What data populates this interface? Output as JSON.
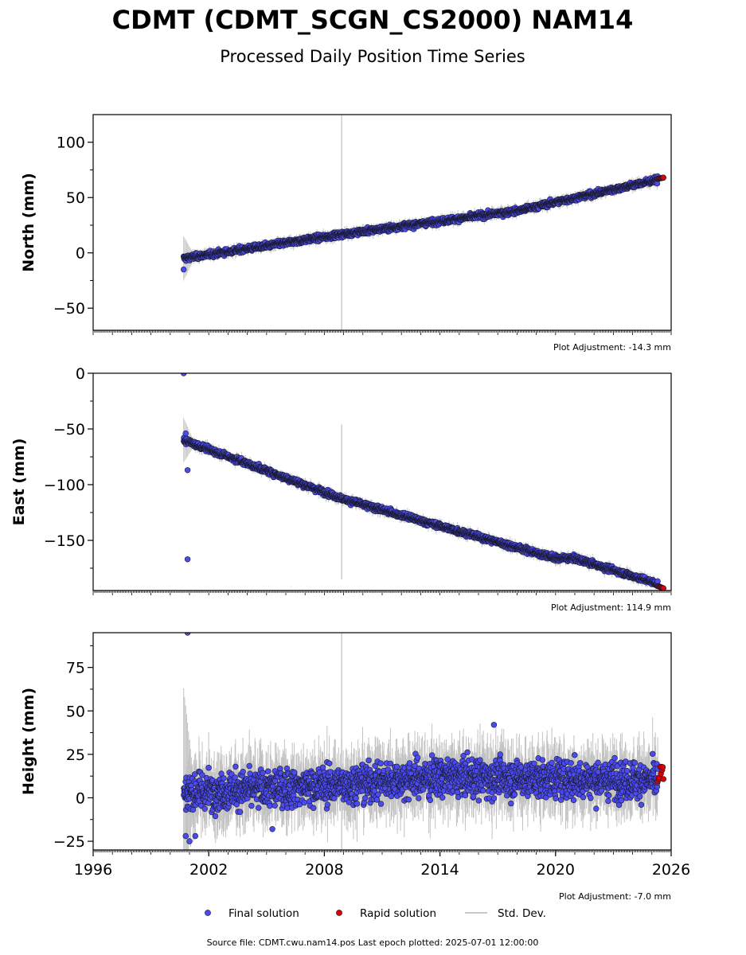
{
  "header": {
    "title": "CDMT (CDMT_SCGN_CS2000) NAM14",
    "subtitle": "Processed Daily Position Time Series"
  },
  "footer": {
    "source": "Source file: CDMT.cwu.nam14.pos  Last epoch plotted: 2025-07-01 12:00:00"
  },
  "legend": {
    "final": "Final solution",
    "rapid": "Rapid solution",
    "std": "Std. Dev."
  },
  "colors": {
    "final": "#4b4bef",
    "rapid": "#e00000",
    "std": "#c8c8c8",
    "edge": "#1a1a2e"
  },
  "chart_data": [
    {
      "type": "scatter",
      "ylabel": "North (mm)",
      "adjustment": "Plot Adjustment: -14.3 mm",
      "xlim": [
        1996,
        2026
      ],
      "ylim": [
        -70,
        125
      ],
      "yticks": [
        -50,
        0,
        50,
        100
      ],
      "yticks_labels": [
        "−50",
        "0",
        "50",
        "100"
      ],
      "trend": {
        "x": [
          2000.7,
          2009,
          2018,
          2025.5
        ],
        "y": [
          -5,
          17,
          38,
          67
        ]
      },
      "noise": 1.8,
      "outliers": [
        [
          2000.7,
          -15
        ]
      ],
      "rapid": {
        "x0": 2025.3,
        "x1": 2025.6,
        "y0": 67,
        "y1": 68
      },
      "spike": {
        "x": 2008.9,
        "y0": -70,
        "y1": 125
      }
    },
    {
      "type": "scatter",
      "ylabel": "East (mm)",
      "adjustment": "Plot Adjustment: 114.9 mm",
      "xlim": [
        1996,
        2026
      ],
      "ylim": [
        -195,
        0
      ],
      "yticks": [
        -150,
        -100,
        -50,
        0
      ],
      "yticks_labels": [
        "−150",
        "−100",
        "−50",
        "0"
      ],
      "trend": {
        "x": [
          2000.7,
          2009,
          2020,
          2021,
          2025.5
        ],
        "y": [
          -60,
          -113,
          -166,
          -166,
          -190
        ]
      },
      "noise": 1.8,
      "outliers": [
        [
          2000.7,
          0
        ],
        [
          2000.8,
          -54
        ],
        [
          2000.9,
          -87
        ],
        [
          2000.9,
          -167
        ]
      ],
      "rapid": {
        "x0": 2025.3,
        "x1": 2025.6,
        "y0": -191,
        "y1": -193
      },
      "spike": {
        "x": 2008.9,
        "y0": -185,
        "y1": -46
      }
    },
    {
      "type": "scatter",
      "ylabel": "Height (mm)",
      "adjustment": "Plot Adjustment: -7.0 mm",
      "xlim": [
        1996,
        2026
      ],
      "ylim": [
        -30,
        95
      ],
      "yticks": [
        -25,
        0,
        25,
        50,
        75
      ],
      "yticks_labels": [
        "−25",
        "0",
        "25",
        "50",
        "75"
      ],
      "xticks": [
        1996,
        2002,
        2008,
        2014,
        2020,
        2026
      ],
      "trend": {
        "x": [
          2000.7,
          2008,
          2014,
          2025.5
        ],
        "y": [
          3,
          7,
          12,
          10
        ]
      },
      "noise": 7.5,
      "outliers": [
        [
          2000.9,
          95
        ],
        [
          2001.0,
          -25
        ],
        [
          2000.8,
          -22
        ],
        [
          2001.3,
          -22
        ],
        [
          2016.8,
          42
        ],
        [
          2005.3,
          -18
        ]
      ],
      "rapid": {
        "x0": 2025.3,
        "x1": 2025.6,
        "y0": 8,
        "y1": 18
      },
      "spike": {
        "x": 2008.9,
        "y0": -30,
        "y1": 95
      }
    }
  ]
}
